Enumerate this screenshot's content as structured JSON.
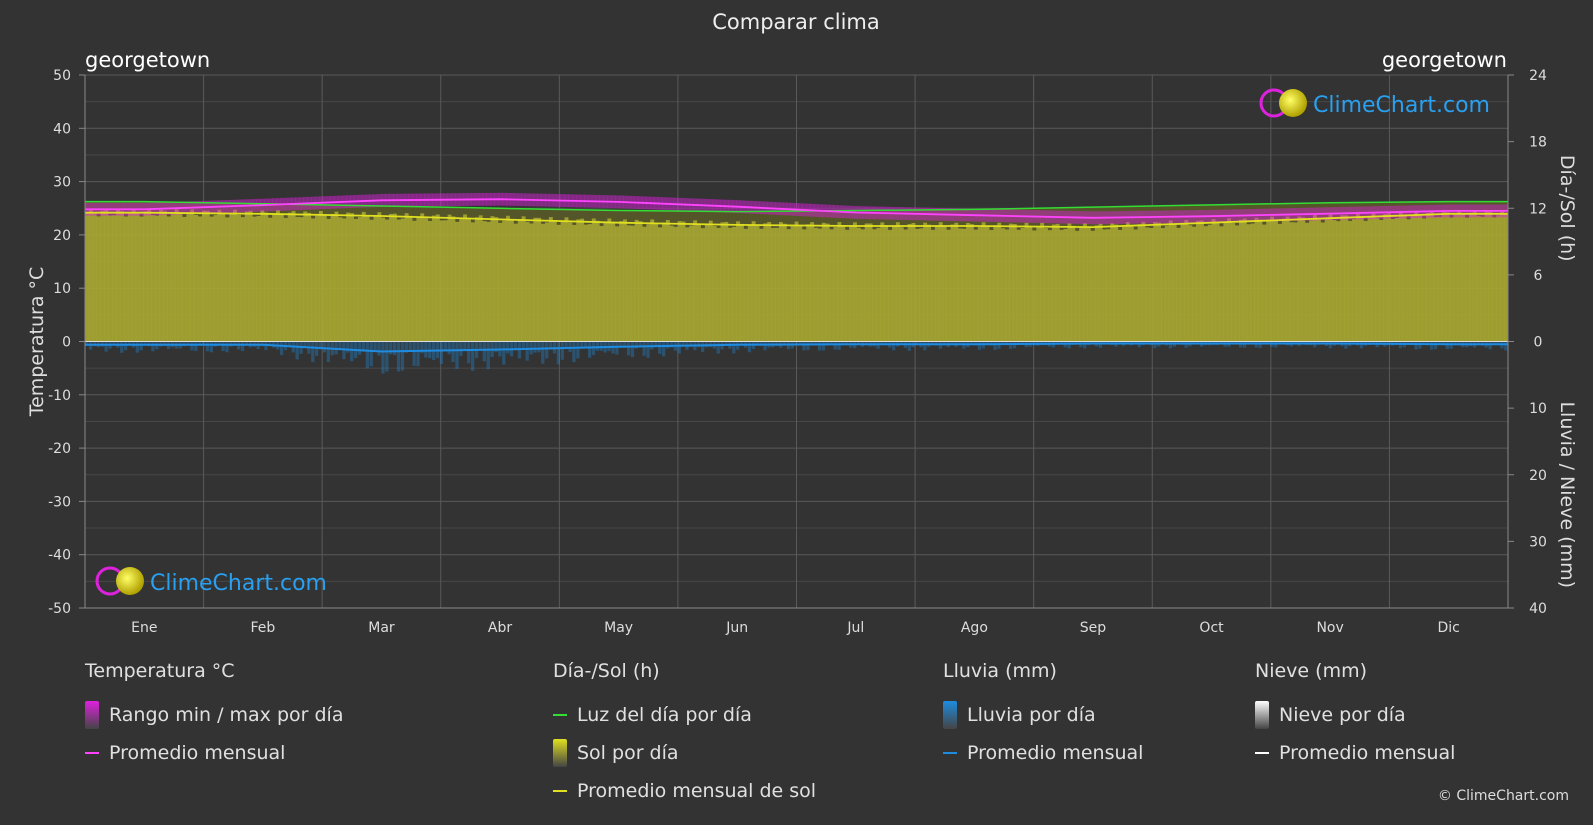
{
  "title": "Comparar clima",
  "location_left": "georgetown",
  "location_right": "georgetown",
  "brand": "ClimeChart.com",
  "copyright": "© ClimeChart.com",
  "colors": {
    "background": "#333333",
    "temp_avg": "#ff44ff",
    "temp_range": "#e020e0",
    "daylight": "#33dd33",
    "sunshine_fill": "#a8a832",
    "sunshine_avg": "#e0e020",
    "rain": "#1e8ce0",
    "snow": "#ffffff"
  },
  "chart_data": {
    "type": "line",
    "title": "Comparar clima",
    "categories": [
      "Ene",
      "Feb",
      "Mar",
      "Abr",
      "May",
      "Jun",
      "Jul",
      "Ago",
      "Sep",
      "Oct",
      "Nov",
      "Dic"
    ],
    "y_left": {
      "label": "Temperatura °C",
      "min": -50,
      "max": 50,
      "ticks": [
        50,
        40,
        30,
        20,
        10,
        0,
        -10,
        -20,
        -30,
        -40,
        -50
      ]
    },
    "y_right_top": {
      "label": "Día-/Sol (h)",
      "min": 0,
      "max": 24,
      "ticks": [
        24,
        18,
        12,
        6,
        0
      ]
    },
    "y_right_bottom": {
      "label": "Lluvia / Nieve (mm)",
      "min": 0,
      "max": 40,
      "ticks": [
        0,
        10,
        20,
        30,
        40
      ]
    },
    "grid": true,
    "series": [
      {
        "name": "Luz del día por día",
        "axis": "right_hours",
        "values": [
          12.6,
          12.4,
          12.2,
          12.0,
          11.8,
          11.7,
          11.8,
          11.9,
          12.1,
          12.3,
          12.5,
          12.6
        ]
      },
      {
        "name": "Promedio mensual de sol",
        "axis": "right_hours",
        "values": [
          11.6,
          11.5,
          11.3,
          11.0,
          10.7,
          10.5,
          10.4,
          10.4,
          10.3,
          10.7,
          11.1,
          11.5
        ]
      },
      {
        "name": "Promedio mensual",
        "group": "Temperatura °C",
        "axis": "left",
        "values": [
          24.8,
          25.6,
          26.5,
          26.7,
          26.2,
          25.3,
          24.2,
          23.7,
          23.2,
          23.5,
          24.0,
          24.5
        ]
      },
      {
        "name": "Promedio mensual",
        "group": "Lluvia (mm)",
        "axis": "right_rain",
        "values": [
          0.5,
          0.5,
          1.5,
          1.2,
          0.8,
          0.5,
          0.4,
          0.4,
          0.3,
          0.3,
          0.3,
          0.4
        ]
      },
      {
        "name": "Promedio mensual",
        "group": "Nieve (mm)",
        "axis": "right_rain",
        "values": [
          0,
          0,
          0,
          0,
          0,
          0,
          0,
          0,
          0,
          0,
          0,
          0
        ]
      }
    ]
  },
  "legend": {
    "groups": [
      {
        "title": "Temperatura °C",
        "items": [
          {
            "label": "Rango min / max por día",
            "type": "grad",
            "color": "#e020e0"
          },
          {
            "label": "Promedio mensual",
            "type": "line",
            "color": "#ff44ff"
          }
        ]
      },
      {
        "title": "Día-/Sol (h)",
        "items": [
          {
            "label": "Luz del día por día",
            "type": "line",
            "color": "#33dd33"
          },
          {
            "label": "Sol por día",
            "type": "grad",
            "color": "#e0e020"
          },
          {
            "label": "Promedio mensual de sol",
            "type": "line",
            "color": "#e0e020"
          }
        ]
      },
      {
        "title": "Lluvia (mm)",
        "items": [
          {
            "label": "Lluvia por día",
            "type": "grad",
            "color": "#1e8ce0"
          },
          {
            "label": "Promedio mensual",
            "type": "line",
            "color": "#1e8ce0"
          }
        ]
      },
      {
        "title": "Nieve (mm)",
        "items": [
          {
            "label": "Nieve por día",
            "type": "grad",
            "color": "#ffffff"
          },
          {
            "label": "Promedio mensual",
            "type": "line",
            "color": "#ffffff"
          }
        ]
      }
    ]
  }
}
